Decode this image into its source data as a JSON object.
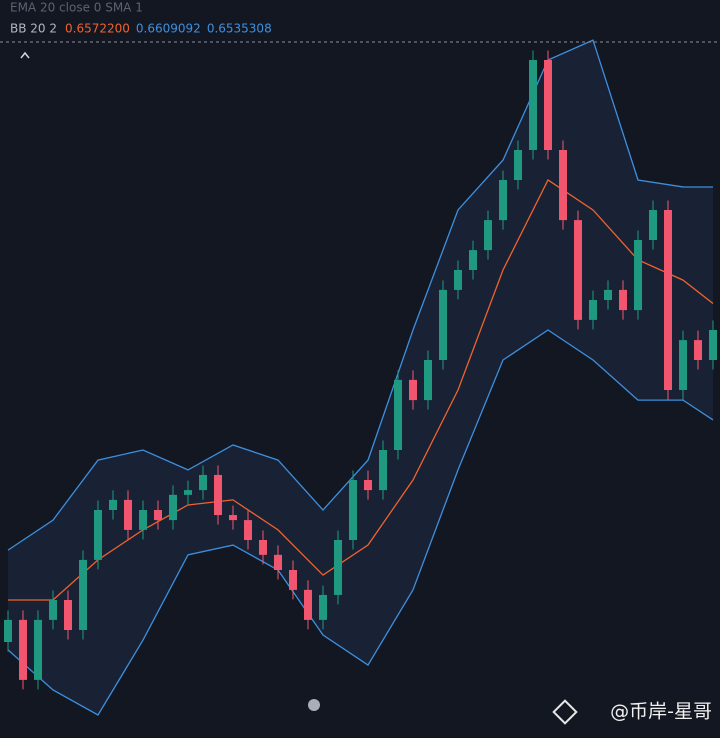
{
  "chart_data": {
    "type": "candlestick",
    "indicator_line": "EMA 20 close 0 SMA 1",
    "bb_legend": {
      "label": "BB 20 2",
      "values": [
        0.65722,
        0.6609092,
        0.6535308
      ],
      "value_labels": [
        "0.6572200",
        "0.6609092",
        "0.6535308"
      ],
      "colors": [
        "#f0622e",
        "#3d8fe0",
        "#3d8fe0"
      ]
    },
    "ylim": [
      0.64346,
      0.66683
    ],
    "up_color": "#1f9a80",
    "down_color": "#f2566e",
    "open": [
      0.6465,
      0.6472,
      0.6453,
      0.6472,
      0.64783,
      0.64688,
      0.6491,
      0.65068,
      0.651,
      0.65005,
      0.65068,
      0.65036,
      0.65116,
      0.65131,
      0.65179,
      0.65052,
      0.65036,
      0.64973,
      0.64926,
      0.64878,
      0.64815,
      0.6472,
      0.64799,
      0.64973,
      0.65163,
      0.65131,
      0.65258,
      0.6548,
      0.65416,
      0.65543,
      0.65765,
      0.65828,
      0.65891,
      0.65986,
      0.66113,
      0.66208,
      0.66493,
      0.66208,
      0.65986,
      0.6567,
      0.65733,
      0.65765,
      0.65701,
      0.65923,
      0.66018,
      0.65448,
      0.65606,
      0.65543
    ],
    "high": [
      0.6475,
      0.6475,
      0.6475,
      0.64813,
      0.64813,
      0.6494,
      0.65098,
      0.6513,
      0.6513,
      0.65098,
      0.65098,
      0.65146,
      0.65161,
      0.65209,
      0.65209,
      0.65082,
      0.65066,
      0.65003,
      0.64956,
      0.64908,
      0.64845,
      0.64829,
      0.65003,
      0.65193,
      0.65193,
      0.65288,
      0.6551,
      0.6551,
      0.65573,
      0.65795,
      0.65858,
      0.65921,
      0.66016,
      0.66143,
      0.66238,
      0.66523,
      0.66523,
      0.66238,
      0.66016,
      0.65763,
      0.65795,
      0.65795,
      0.65953,
      0.66048,
      0.66048,
      0.65636,
      0.65636,
      0.65668
    ],
    "low": [
      0.6462,
      0.645,
      0.645,
      0.6469,
      0.64658,
      0.64658,
      0.6488,
      0.65038,
      0.64975,
      0.64975,
      0.65006,
      0.65006,
      0.65086,
      0.65101,
      0.65022,
      0.65006,
      0.64943,
      0.64896,
      0.64848,
      0.64785,
      0.6469,
      0.6469,
      0.64769,
      0.64943,
      0.65101,
      0.65101,
      0.65228,
      0.65386,
      0.65386,
      0.65513,
      0.65735,
      0.65798,
      0.65861,
      0.65956,
      0.66083,
      0.66178,
      0.66178,
      0.65956,
      0.6564,
      0.6564,
      0.65703,
      0.65671,
      0.65671,
      0.65893,
      0.65418,
      0.65418,
      0.65513,
      0.65513
    ],
    "close": [
      0.6472,
      0.6453,
      0.6472,
      0.64783,
      0.64688,
      0.6491,
      0.65068,
      0.651,
      0.65005,
      0.65068,
      0.65036,
      0.65116,
      0.65131,
      0.65179,
      0.65052,
      0.65036,
      0.64973,
      0.64926,
      0.64878,
      0.64815,
      0.6472,
      0.64799,
      0.64973,
      0.65163,
      0.65131,
      0.65258,
      0.6548,
      0.65416,
      0.65543,
      0.65765,
      0.65828,
      0.65891,
      0.65986,
      0.66113,
      0.66208,
      0.66493,
      0.66208,
      0.65986,
      0.6567,
      0.65733,
      0.65765,
      0.65701,
      0.65923,
      0.66018,
      0.65448,
      0.65606,
      0.65543,
      0.65638
    ],
    "bands": {
      "x": [
        0,
        3,
        6,
        9,
        12,
        15,
        18,
        21,
        24,
        27,
        30,
        33,
        36,
        39,
        42,
        45,
        47
      ],
      "upper": [
        0.64941,
        0.65036,
        0.65226,
        0.65258,
        0.65195,
        0.65274,
        0.65226,
        0.65068,
        0.65226,
        0.65638,
        0.66018,
        0.66176,
        0.66493,
        0.66556,
        0.66113,
        0.66091,
        0.6609092
      ],
      "middle": [
        0.64783,
        0.64783,
        0.6491,
        0.65005,
        0.65084,
        0.651,
        0.65005,
        0.64862,
        0.64957,
        0.65163,
        0.65448,
        0.65828,
        0.66113,
        0.66018,
        0.6586,
        0.65796,
        0.65722
      ],
      "lower": [
        0.64625,
        0.64498,
        0.64419,
        0.64656,
        0.64926,
        0.64957,
        0.64878,
        0.64672,
        0.64577,
        0.64815,
        0.65195,
        0.65543,
        0.65638,
        0.65543,
        0.65416,
        0.65416,
        0.6535308
      ],
      "band_color": "#3d8fe0",
      "middle_color": "#f0622e",
      "fill": "#1b2436"
    },
    "watermark": "@币岸-星哥"
  }
}
